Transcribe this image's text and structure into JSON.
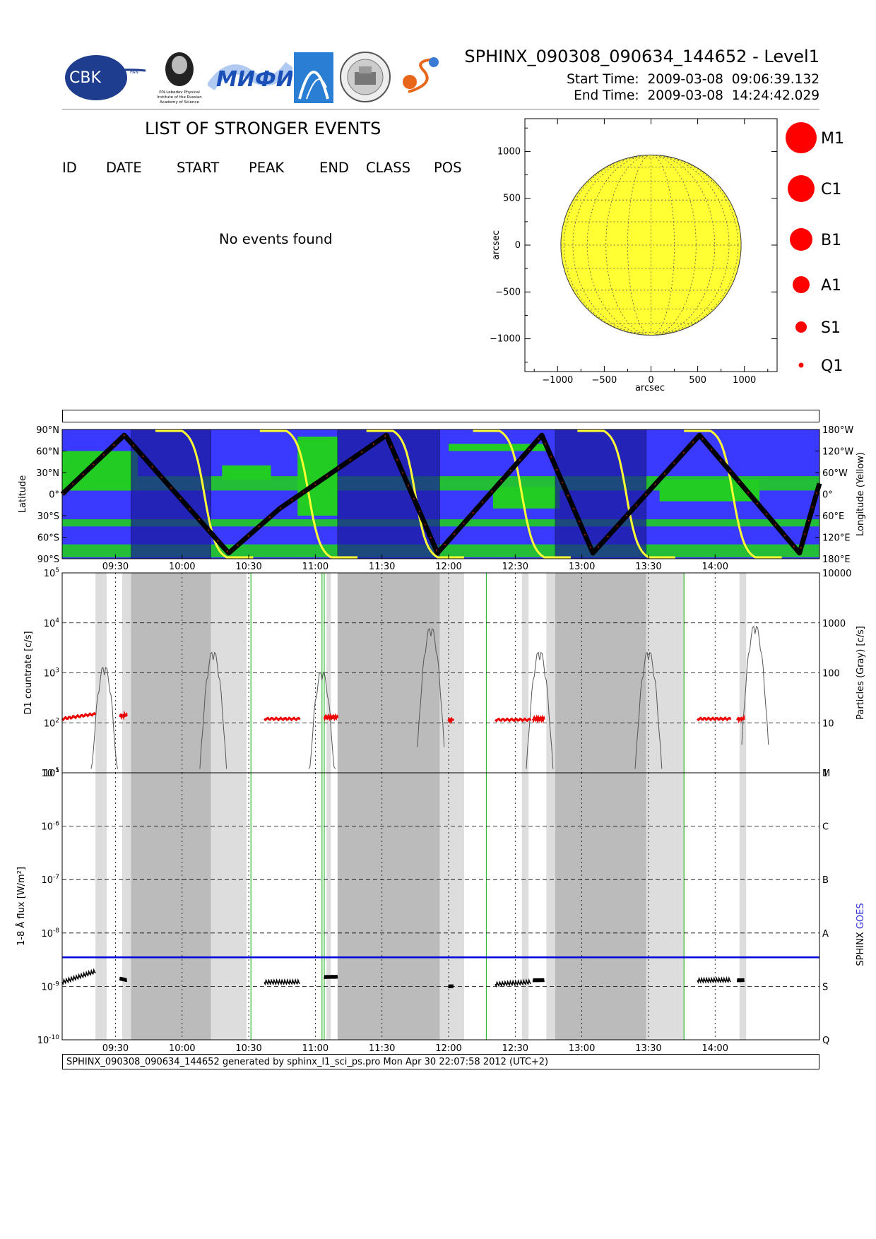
{
  "header": {
    "title": "SPHINX_090308_090634_144652 - Level1",
    "start_label": "Start Time:",
    "start_date": "2009-03-08",
    "start_time": "09:06:39.132",
    "end_label": "End Time:",
    "end_date": "2009-03-08",
    "end_time": "14:24:42.029",
    "logos": {
      "cbk": "CBK",
      "cbk_small": "PAN",
      "lebedev": "P.N.Lebedev Physical Institute of the Russian Academy of Science",
      "mifi": "МИФИ",
      "seal": "SPACE RESEARCH CENTRE · MOSCOW"
    }
  },
  "events": {
    "title": "LIST OF STRONGER EVENTS",
    "columns": [
      "ID",
      "DATE",
      "START",
      "PEAK",
      "END",
      "CLASS",
      "POS"
    ],
    "empty_message": "No events found"
  },
  "sun_map": {
    "xlabel": "arcsec",
    "ylabel": "arcsec",
    "x_ticks": [
      "−1000",
      "−500",
      "0",
      "500",
      "1000"
    ],
    "y_ticks": [
      "1000",
      "500",
      "0",
      "−500",
      "−1000"
    ],
    "disk_color": "#ffff33",
    "classes": [
      "M1",
      "C1",
      "B1",
      "A1",
      "S1",
      "Q1"
    ]
  },
  "time_axis": {
    "ticks": [
      "09:30",
      "10:00",
      "10:30",
      "11:00",
      "11:30",
      "12:00",
      "12:30",
      "13:00",
      "13:30",
      "14:00"
    ]
  },
  "orbit_panel": {
    "ylabel": "Latitude",
    "y2label": "Longitude (Yellow)",
    "lat_ticks": [
      "90°N",
      "60°N",
      "30°N",
      "0°",
      "30°S",
      "60°S",
      "90°S"
    ],
    "lon_ticks": [
      "180°W",
      "120°W",
      "60°W",
      "0°",
      "60°E",
      "120°E",
      "180°E"
    ],
    "colors": {
      "background": "#3a3aff",
      "land": "#22cc22",
      "eclipse": "#1a1a99",
      "track": "#000000",
      "longitude": "#ffff33"
    }
  },
  "countrate_panel": {
    "ylabel": "D1 countrate [c/s]",
    "y2label": "Particles (Gray) [c/s]",
    "y_ticks": [
      "10^5",
      "10^4",
      "10^3",
      "10^2",
      "10^1"
    ],
    "y2_ticks": [
      "10000",
      "1000",
      "100",
      "10",
      "1"
    ]
  },
  "flux_panel": {
    "ylabel": "1-8 Å flux [W/m²]",
    "y2label_a": "SPHINX",
    "y2label_b": "GOES",
    "y_ticks": [
      "10^-5",
      "10^-6",
      "10^-7",
      "10^-8",
      "10^-9",
      "10^-10"
    ],
    "class_ticks": [
      "M",
      "C",
      "B",
      "A",
      "S",
      "Q"
    ],
    "goes_color": "#0000dd"
  },
  "footer": {
    "text": "SPHINX_090308_090634_144652 generated by sphinx_l1_sci_ps.pro Mon Apr 30 22:07:58 2012 (UTC+2)"
  },
  "chart_data": [
    {
      "type": "scatter",
      "title": "",
      "xlabel": "arcsec",
      "ylabel": "arcsec",
      "xlim": [
        -1350,
        1350
      ],
      "ylim": [
        -1350,
        1350
      ],
      "solar_radius_arcsec": 965,
      "events": []
    },
    {
      "type": "line",
      "ylabel": "Latitude",
      "y2label": "Longitude (Yellow)",
      "x_range": [
        "09:06",
        "14:47"
      ],
      "series": [
        {
          "name": "Latitude",
          "x": [
            "09:06",
            "09:34",
            "10:21",
            "10:44",
            "11:32",
            "11:55",
            "12:42",
            "13:05",
            "13:53",
            "14:38",
            "14:47"
          ],
          "values": [
            0,
            82,
            -82,
            -20,
            82,
            -82,
            82,
            -82,
            82,
            -82,
            15
          ]
        }
      ],
      "ylim": [
        -90,
        90
      ],
      "eclipse_intervals": [
        [
          "09:37",
          "10:13"
        ],
        [
          "11:10",
          "11:56"
        ],
        [
          "12:48",
          "13:29"
        ]
      ]
    },
    {
      "type": "line",
      "ylabel": "D1 countrate [c/s]",
      "y2label": "Particles (Gray) [c/s]",
      "y_scale": "log",
      "ylim": [
        10,
        100000
      ],
      "y2lim": [
        1,
        10000
      ],
      "series": [
        {
          "name": "D1 countrate",
          "segments": [
            {
              "x": [
                "09:06",
                "09:21"
              ],
              "values": [
                120,
                150
              ]
            },
            {
              "x": [
                "09:32",
                "09:35"
              ],
              "values": [
                140,
                140
              ]
            },
            {
              "x": [
                "10:37",
                "10:53"
              ],
              "values": [
                120,
                120
              ]
            },
            {
              "x": [
                "11:04",
                "11:10"
              ],
              "values": [
                130,
                130
              ]
            },
            {
              "x": [
                "12:00",
                "12:02"
              ],
              "values": [
                115,
                115
              ]
            },
            {
              "x": [
                "12:21",
                "12:37"
              ],
              "values": [
                115,
                115
              ]
            },
            {
              "x": [
                "12:38",
                "12:43"
              ],
              "values": [
                120,
                120
              ]
            },
            {
              "x": [
                "13:52",
                "14:07"
              ],
              "values": [
                120,
                120
              ]
            },
            {
              "x": [
                "14:10",
                "14:13"
              ],
              "values": [
                120,
                120
              ]
            }
          ]
        },
        {
          "name": "Particles (Gray)",
          "peaks": [
            {
              "x": "09:25",
              "value": 150
            },
            {
              "x": "10:14",
              "value": 300
            },
            {
              "x": "11:03",
              "value": 120
            },
            {
              "x": "11:52",
              "value": 900
            },
            {
              "x": "12:41",
              "value": 300
            },
            {
              "x": "13:30",
              "value": 300
            },
            {
              "x": "14:18",
              "value": 1000
            }
          ]
        }
      ]
    },
    {
      "type": "line",
      "ylabel": "1-8 Å flux [W/m²]",
      "y_scale": "log",
      "ylim": [
        1e-10,
        1e-05
      ],
      "series": [
        {
          "name": "GOES",
          "x": [
            "09:06",
            "14:47"
          ],
          "values": [
            3.5e-09,
            3.5e-09
          ]
        },
        {
          "name": "SPHINX",
          "segments": [
            {
              "x": [
                "09:06",
                "09:21"
              ],
              "values": [
                1.2e-09,
                1.9e-09
              ]
            },
            {
              "x": [
                "09:32",
                "09:35"
              ],
              "values": [
                1.4e-09,
                1.3e-09
              ]
            },
            {
              "x": [
                "10:37",
                "10:53"
              ],
              "values": [
                1.2e-09,
                1.2e-09
              ]
            },
            {
              "x": [
                "11:04",
                "11:10"
              ],
              "values": [
                1.5e-09,
                1.5e-09
              ]
            },
            {
              "x": [
                "12:00",
                "12:02"
              ],
              "values": [
                1e-09,
                1e-09
              ]
            },
            {
              "x": [
                "12:21",
                "12:37"
              ],
              "values": [
                1.1e-09,
                1.2e-09
              ]
            },
            {
              "x": [
                "12:38",
                "12:43"
              ],
              "values": [
                1.3e-09,
                1.3e-09
              ]
            },
            {
              "x": [
                "13:52",
                "14:07"
              ],
              "values": [
                1.3e-09,
                1.3e-09
              ]
            },
            {
              "x": [
                "14:10",
                "14:13"
              ],
              "values": [
                1.3e-09,
                1.3e-09
              ]
            }
          ]
        }
      ]
    }
  ]
}
